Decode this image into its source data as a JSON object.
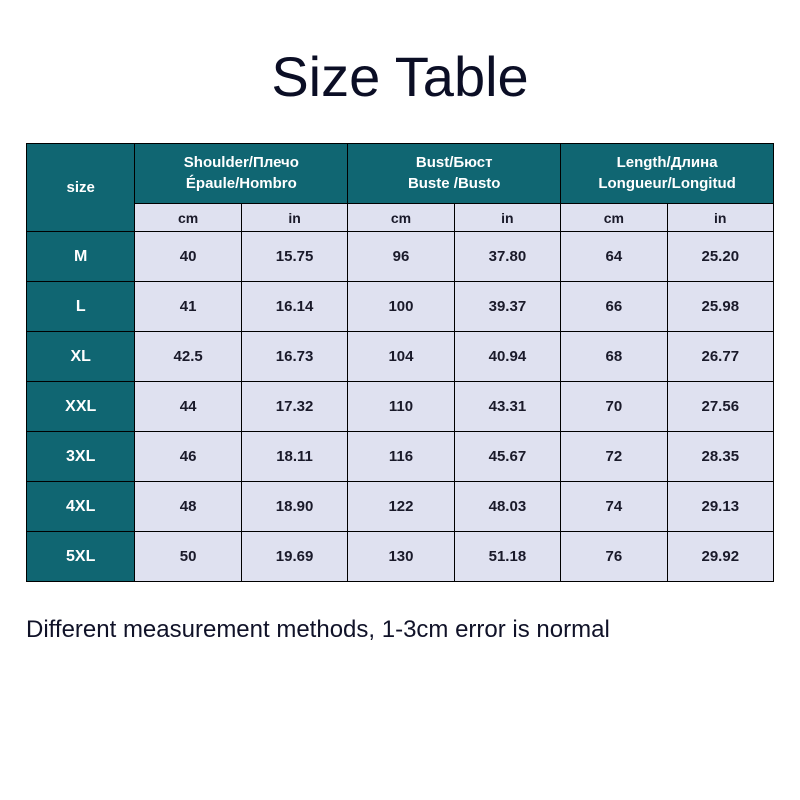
{
  "title": "Size Table",
  "footer": "Different measurement methods, 1-3cm error is normal",
  "colors": {
    "header_bg": "#106672",
    "header_text": "#ffffff",
    "cell_bg": "#dfe1f0",
    "cell_text": "#1a1a2a",
    "border": "#000000",
    "page_bg": "#ffffff",
    "title_color": "#0b0e25"
  },
  "fontsize": {
    "title": 56,
    "header": 15,
    "unit": 14,
    "data": 15,
    "footer": 24
  },
  "size_header": "size",
  "groups": [
    {
      "line1": "Shoulder/Плечо",
      "line2": "Épaule/Hombro"
    },
    {
      "line1": "Bust/Бюст",
      "line2": "Buste /Busto"
    },
    {
      "line1": "Length/Длина",
      "line2": "Longueur/Longitud"
    }
  ],
  "units": [
    "cm",
    "in",
    "cm",
    "in",
    "cm",
    "in"
  ],
  "rows": [
    {
      "size": "M",
      "values": [
        "40",
        "15.75",
        "96",
        "37.80",
        "64",
        "25.20"
      ]
    },
    {
      "size": "L",
      "values": [
        "41",
        "16.14",
        "100",
        "39.37",
        "66",
        "25.98"
      ]
    },
    {
      "size": "XL",
      "values": [
        "42.5",
        "16.73",
        "104",
        "40.94",
        "68",
        "26.77"
      ]
    },
    {
      "size": "XXL",
      "values": [
        "44",
        "17.32",
        "110",
        "43.31",
        "70",
        "27.56"
      ]
    },
    {
      "size": "3XL",
      "values": [
        "46",
        "18.11",
        "116",
        "45.67",
        "72",
        "28.35"
      ]
    },
    {
      "size": "4XL",
      "values": [
        "48",
        "18.90",
        "122",
        "48.03",
        "74",
        "29.13"
      ]
    },
    {
      "size": "5XL",
      "values": [
        "50",
        "19.69",
        "130",
        "51.18",
        "76",
        "29.92"
      ]
    }
  ]
}
